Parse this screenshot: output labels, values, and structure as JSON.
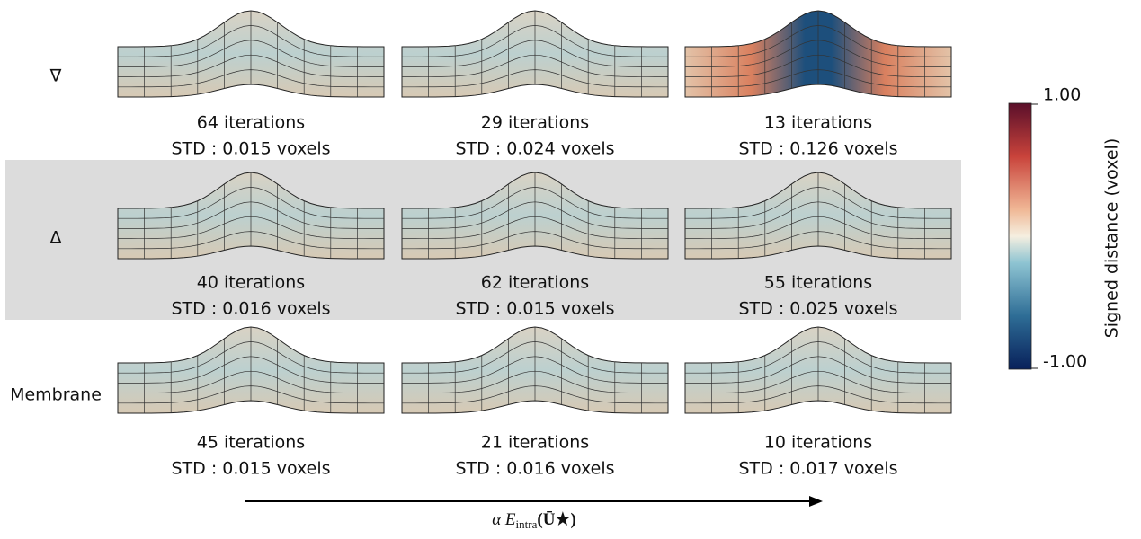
{
  "rows": [
    {
      "label": "∇",
      "cells": [
        {
          "iterations": "64 iterations",
          "std": "STD : 0.015 voxels"
        },
        {
          "iterations": "29 iterations",
          "std": "STD : 0.024 voxels"
        },
        {
          "iterations": "13 iterations",
          "std": "STD : 0.126 voxels"
        }
      ]
    },
    {
      "label": "Δ",
      "cells": [
        {
          "iterations": "40 iterations",
          "std": "STD : 0.016 voxels"
        },
        {
          "iterations": "62 iterations",
          "std": "STD : 0.015 voxels"
        },
        {
          "iterations": "55 iterations",
          "std": "STD : 0.025 voxels"
        }
      ]
    },
    {
      "label": "Membrane",
      "cells": [
        {
          "iterations": "45 iterations",
          "std": "STD : 0.015 voxels"
        },
        {
          "iterations": "21 iterations",
          "std": "STD : 0.016 voxels"
        },
        {
          "iterations": "10 iterations",
          "std": "STD : 0.017 voxels"
        }
      ]
    }
  ],
  "colorbar": {
    "title": "Signed distance (voxel)",
    "max": "1.00",
    "min": "-1.00"
  },
  "arrow_label": {
    "main": "α E",
    "sub": "intra",
    "tail": "(Ū★)"
  }
}
